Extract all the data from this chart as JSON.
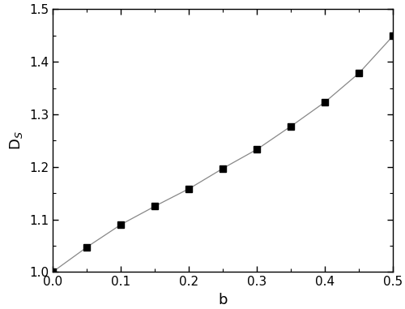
{
  "b_values": [
    0.0,
    0.05,
    0.1,
    0.15,
    0.2,
    0.25,
    0.3,
    0.35,
    0.4,
    0.45,
    0.5
  ],
  "DS_values": [
    1.0,
    1.047,
    1.09,
    1.125,
    1.158,
    1.197,
    1.233,
    1.277,
    1.323,
    1.378,
    1.449
  ],
  "xlabel": "b",
  "ylabel": "D$_S$",
  "xlim": [
    0.0,
    0.5
  ],
  "ylim": [
    1.0,
    1.5
  ],
  "xticks": [
    0.0,
    0.1,
    0.2,
    0.3,
    0.4,
    0.5
  ],
  "yticks": [
    1.0,
    1.1,
    1.2,
    1.3,
    1.4,
    1.5
  ],
  "line_color": "#888888",
  "marker_color": "#000000",
  "marker": "s",
  "marker_size": 6,
  "line_width": 0.9,
  "background_color": "#ffffff",
  "tick_direction": "in",
  "fig_width": 5.0,
  "fig_height": 3.81,
  "xlabel_fontsize": 13,
  "ylabel_fontsize": 13,
  "tick_labelsize": 11
}
